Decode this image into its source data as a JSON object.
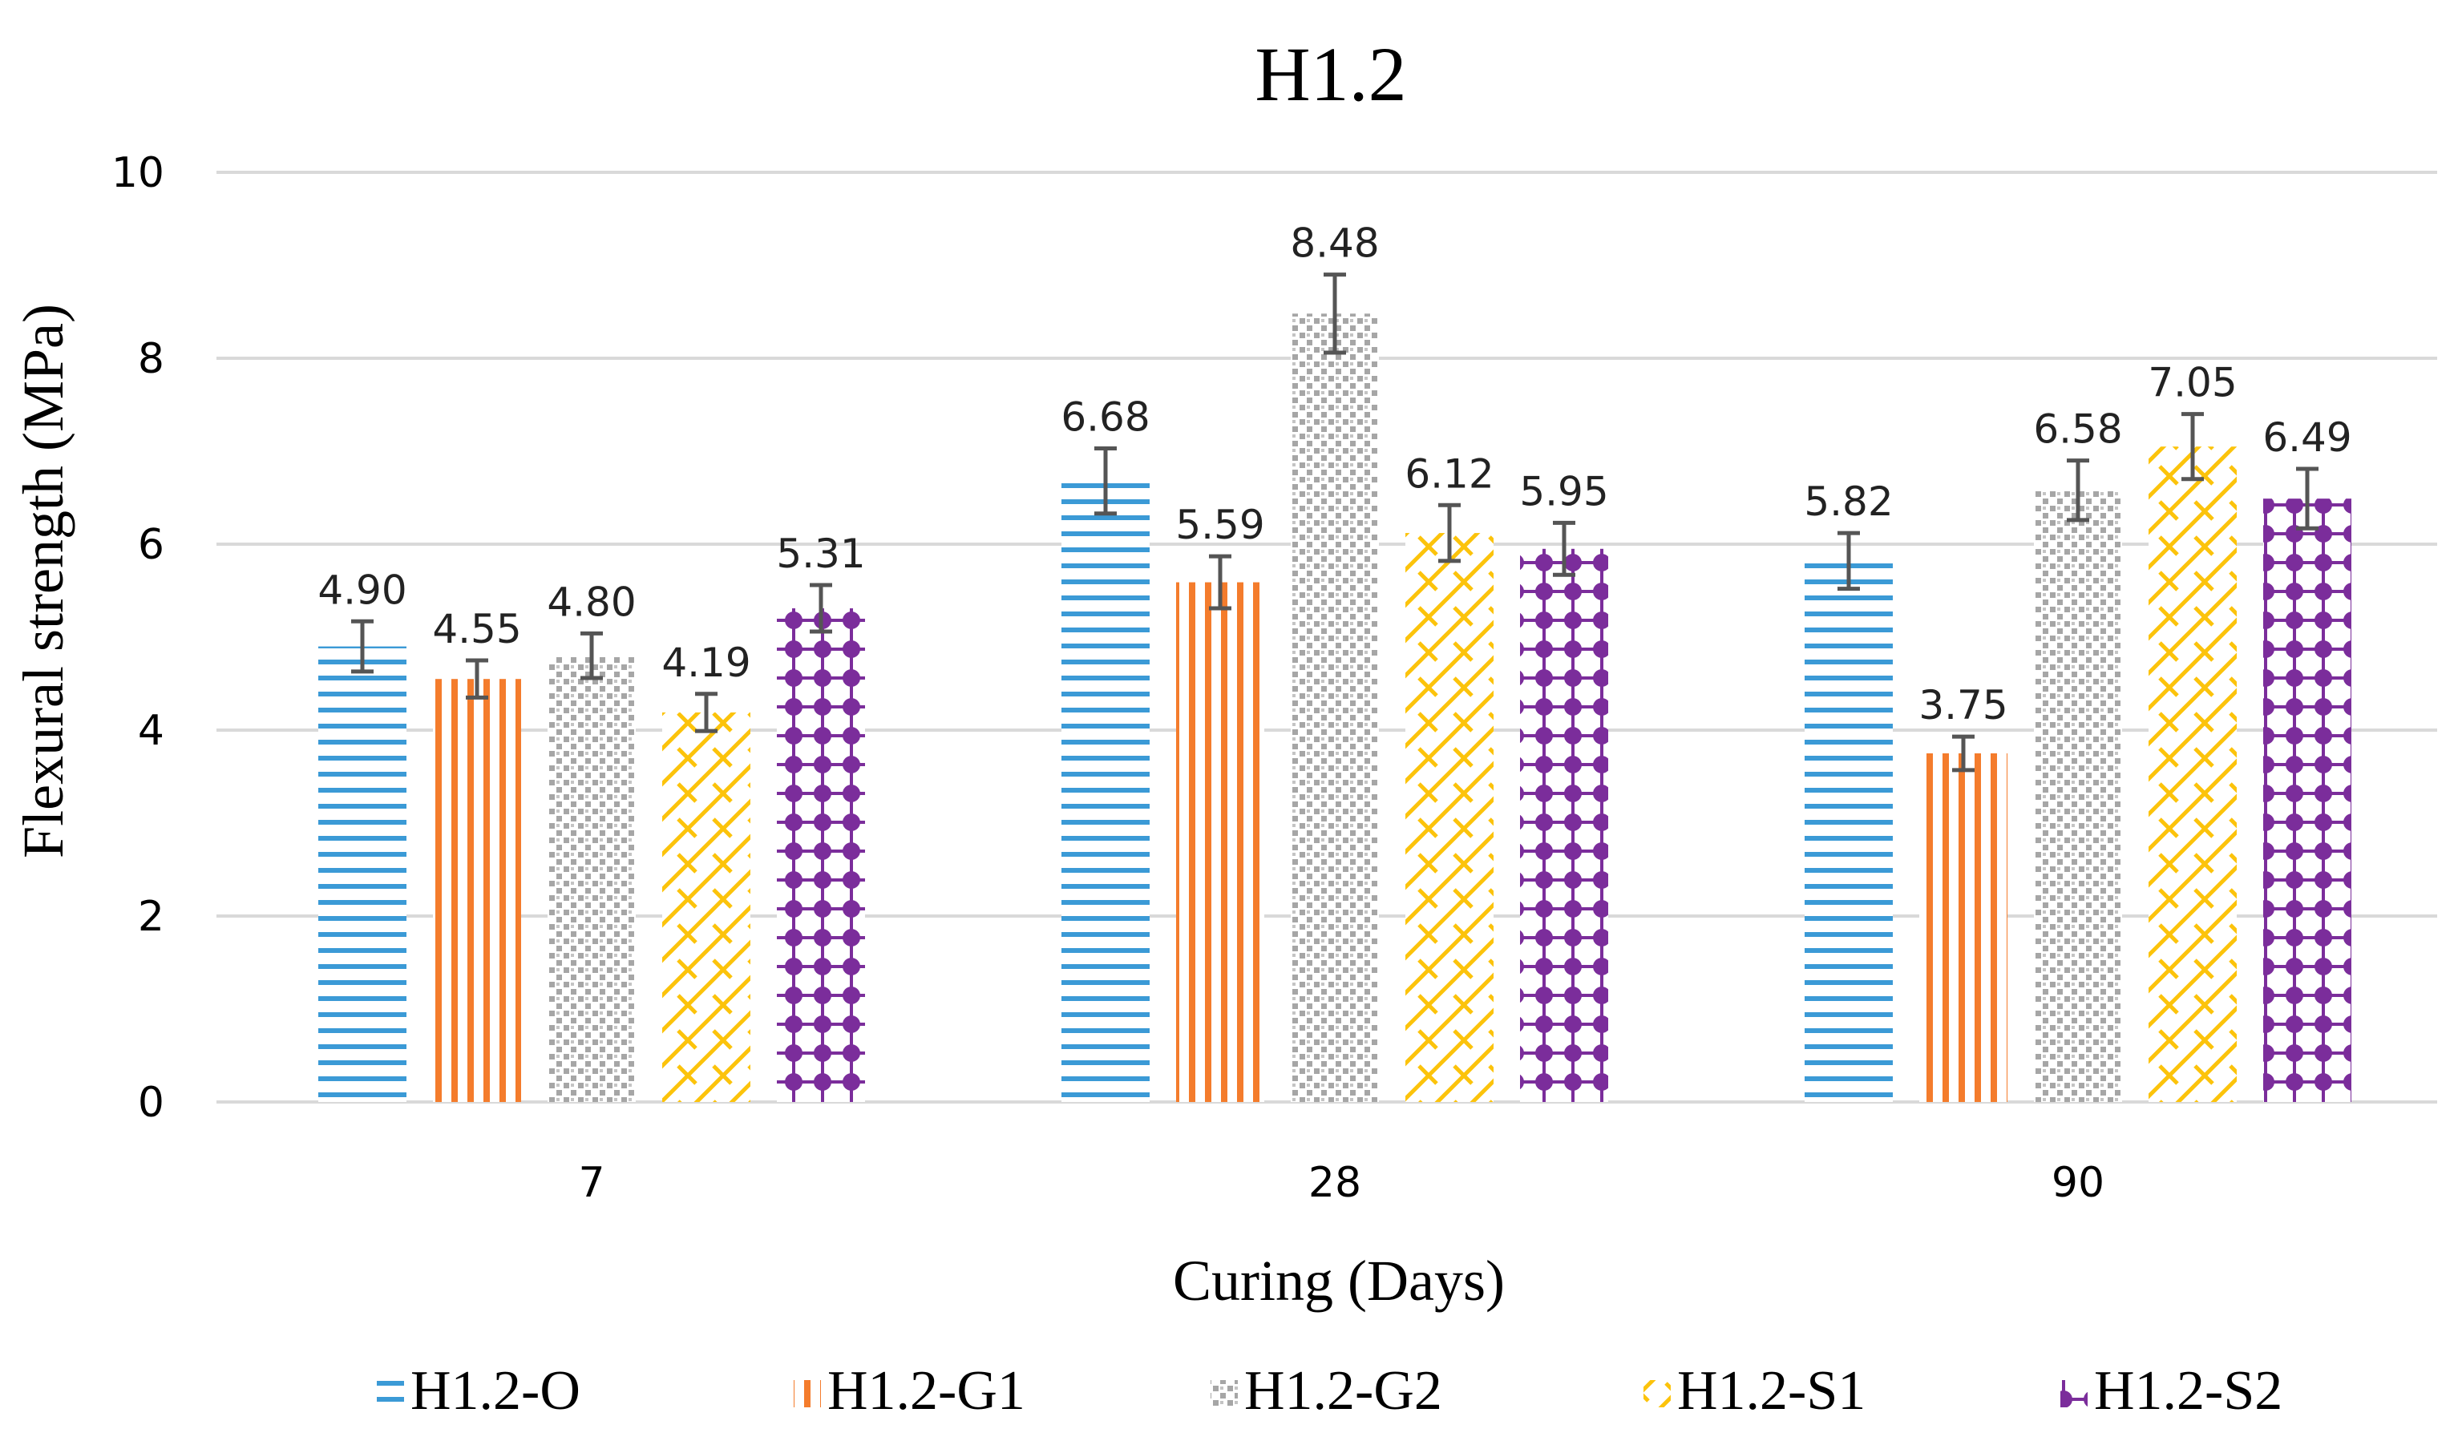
{
  "chart_data": {
    "type": "bar",
    "title": "H1.2",
    "xlabel": "Curing  (Days)",
    "ylabel": "Flexural  strength  (MPa)",
    "ylim": [
      0,
      10
    ],
    "yticks": [
      "0",
      "2",
      "4",
      "6",
      "8",
      "10"
    ],
    "grid": true,
    "legend_position": "bottom",
    "categories": [
      "7",
      "28",
      "90"
    ],
    "series": [
      {
        "name": "H1.2-O",
        "color": "#3b9ad6",
        "pattern": "horizontal-lines",
        "values": [
          4.9,
          6.68,
          5.82
        ],
        "labels": [
          "4.90",
          "6.68",
          "5.82"
        ],
        "errors": [
          0.27,
          0.35,
          0.3
        ]
      },
      {
        "name": "H1.2-G1",
        "color": "#f47c2c",
        "pattern": "vertical-lines",
        "values": [
          4.55,
          5.59,
          3.75
        ],
        "labels": [
          "4.55",
          "5.59",
          "3.75"
        ],
        "errors": [
          0.2,
          0.28,
          0.18
        ]
      },
      {
        "name": "H1.2-G2",
        "color": "#a6a6a6",
        "pattern": "dots",
        "values": [
          4.8,
          8.48,
          6.58
        ],
        "labels": [
          "4.80",
          "8.48",
          "6.58"
        ],
        "errors": [
          0.24,
          0.42,
          0.32
        ]
      },
      {
        "name": "H1.2-S1",
        "color": "#fcc30b",
        "pattern": "zigzag",
        "values": [
          4.19,
          6.12,
          7.05
        ],
        "labels": [
          "4.19",
          "6.12",
          "7.05"
        ],
        "errors": [
          0.2,
          0.3,
          0.35
        ]
      },
      {
        "name": "H1.2-S2",
        "color": "#7b2d9b",
        "pattern": "diamonds",
        "values": [
          5.31,
          5.95,
          6.49
        ],
        "labels": [
          "5.31",
          "5.95",
          "6.49"
        ],
        "errors": [
          0.25,
          0.28,
          0.32
        ]
      }
    ]
  }
}
